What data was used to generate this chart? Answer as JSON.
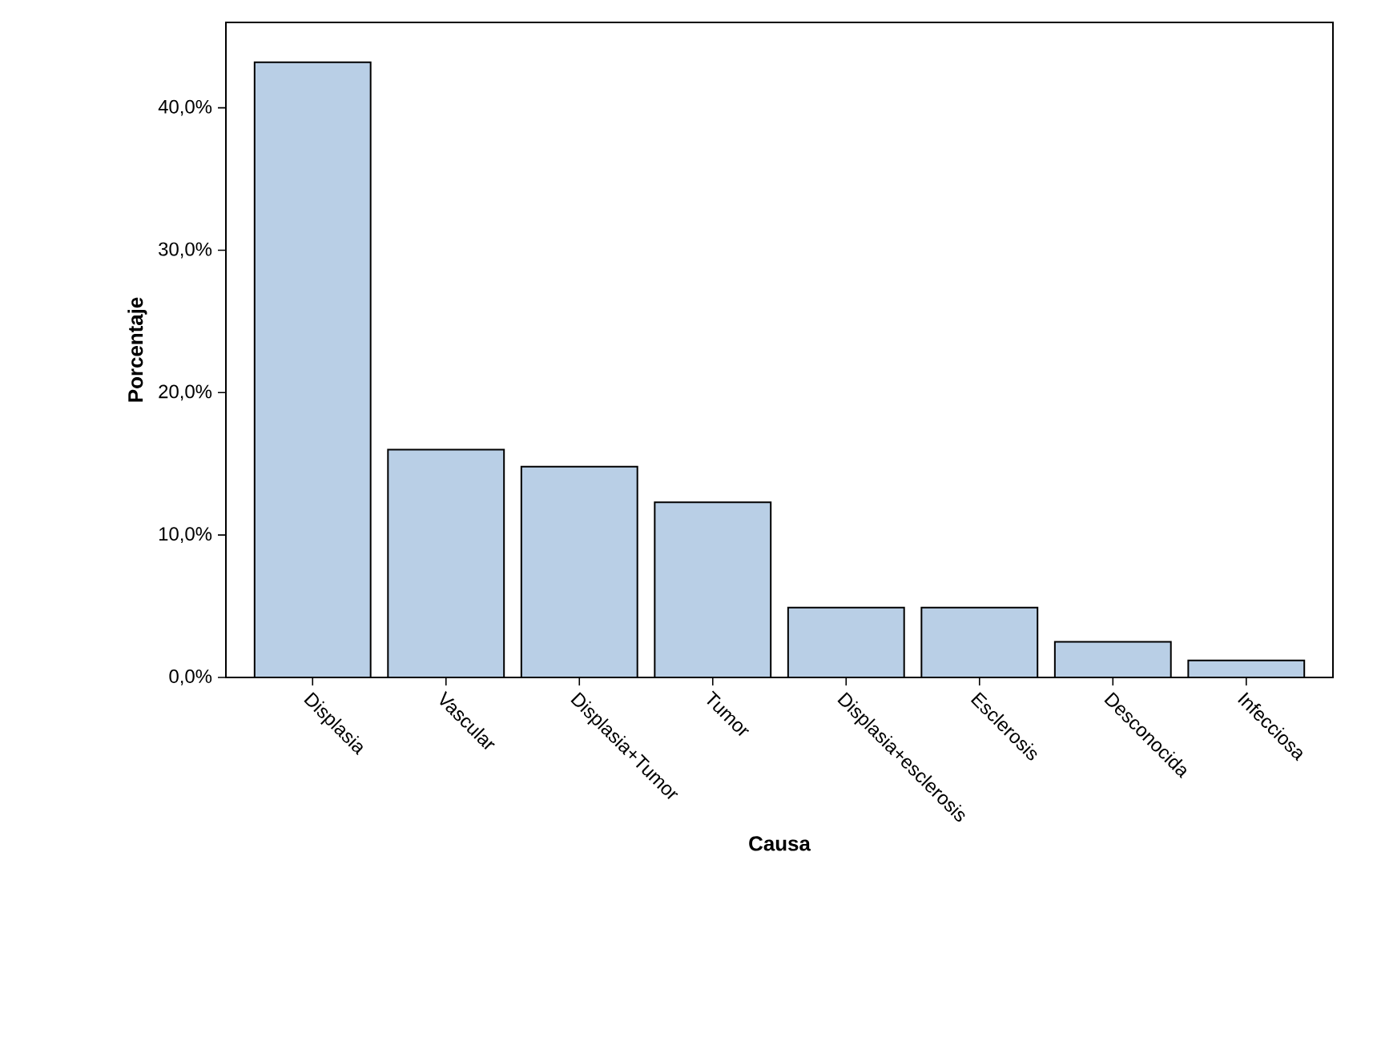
{
  "chart_data": {
    "type": "bar",
    "xlabel": "Causa",
    "ylabel": "Porcentaje",
    "categories": [
      "Displasia",
      "Vascular",
      "Displasia+Tumor",
      "Tumor",
      "Displasia+esclerosis",
      "Esclerosis",
      "Desconocida",
      "Infecciosa"
    ],
    "values": [
      43.2,
      16.0,
      14.8,
      12.3,
      4.9,
      4.9,
      2.5,
      1.2
    ],
    "color": "#b9cfe6",
    "ylim": [
      0,
      46
    ],
    "yticks": [
      {
        "value": 0,
        "label": "0,0%"
      },
      {
        "value": 10,
        "label": "10,0%"
      },
      {
        "value": 20,
        "label": "20,0%"
      },
      {
        "value": 30,
        "label": "30,0%"
      },
      {
        "value": 40,
        "label": "40,0%"
      }
    ],
    "grid": false
  }
}
